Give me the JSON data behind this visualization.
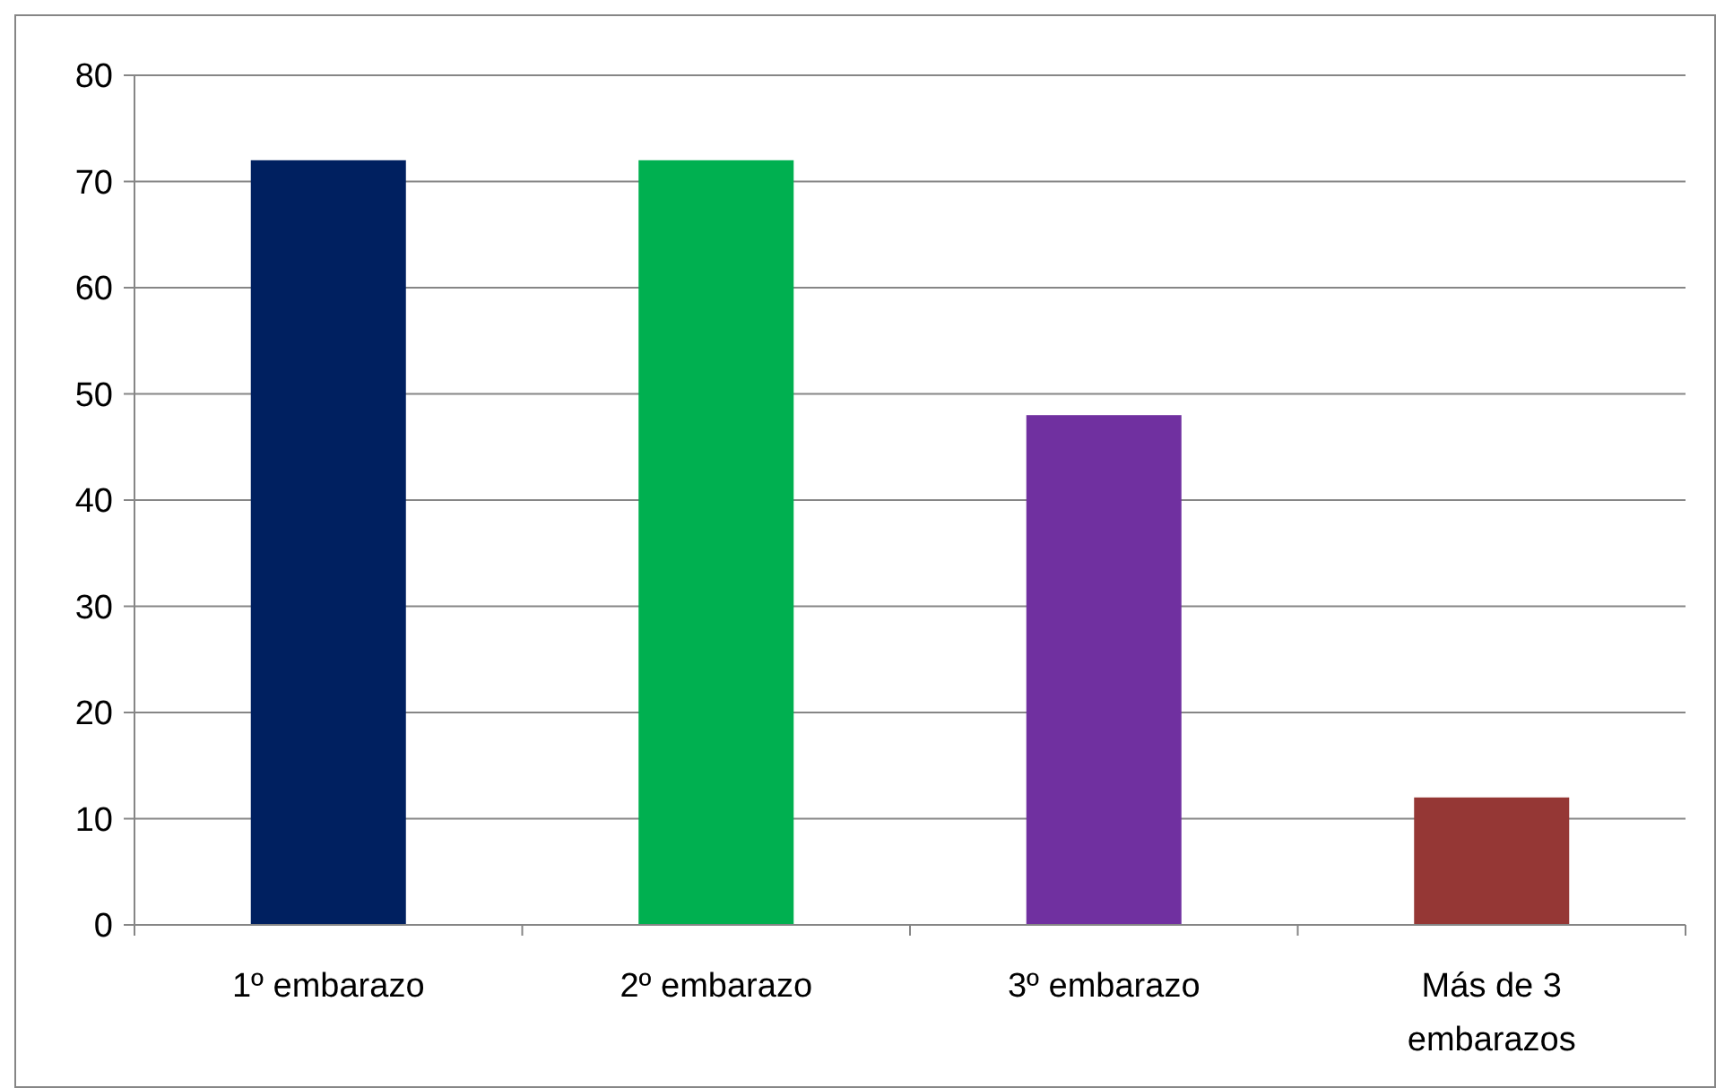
{
  "chart_data": {
    "type": "bar",
    "categories": [
      "1º embarazo",
      "2º embarazo",
      "3º embarazo",
      "Más de 3 embarazos"
    ],
    "values": [
      72,
      72,
      48,
      12
    ],
    "colors": [
      "#002060",
      "#00b050",
      "#7030a0",
      "#953735"
    ],
    "ylim": [
      0,
      80
    ],
    "yticks": [
      0,
      10,
      20,
      30,
      40,
      50,
      60,
      70,
      80
    ],
    "grid": "y"
  }
}
